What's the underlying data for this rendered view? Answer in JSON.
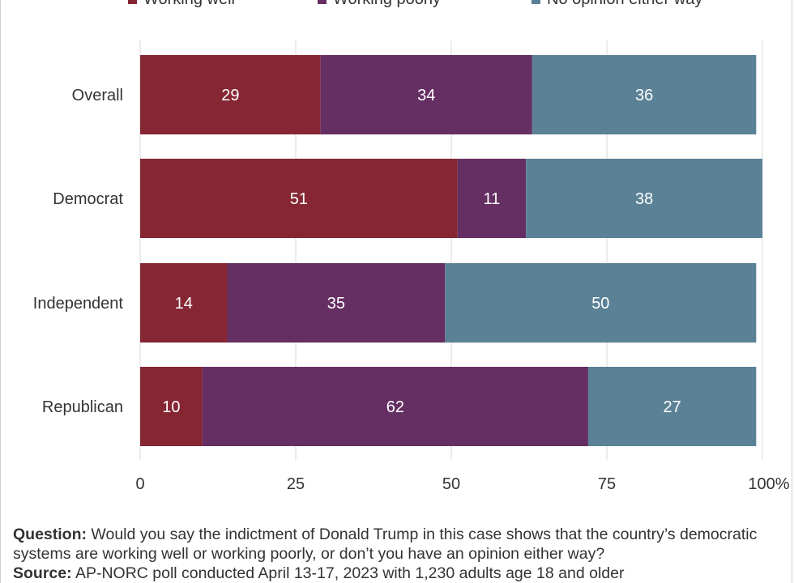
{
  "chart_data": {
    "type": "bar",
    "orientation": "horizontal",
    "stacked": true,
    "categories": [
      "Overall",
      "Democrat",
      "Independent",
      "Republican"
    ],
    "series": [
      {
        "name": "Working well",
        "color": "#862633",
        "values": [
          29,
          51,
          14,
          10
        ]
      },
      {
        "name": "Working poorly",
        "color": "#652F63",
        "values": [
          34,
          11,
          35,
          62
        ]
      },
      {
        "name": "No opinion either way",
        "color": "#5B8196",
        "values": [
          36,
          38,
          50,
          27
        ]
      }
    ],
    "xlim": [
      0,
      100
    ],
    "x_ticks": [
      "0",
      "25",
      "50",
      "75",
      "100%"
    ],
    "grid": true,
    "legend_position": "top"
  },
  "footer": {
    "question_label": "Question:",
    "question_text": " Would you say the indictment of Donald Trump in this case shows that the country’s democratic systems are working well or working poorly, or don’t you have an opinion either way?",
    "source_label": "Source:",
    "source_text": " AP-NORC poll conducted April 13-17, 2023 with 1,230 adults age 18 and older"
  }
}
